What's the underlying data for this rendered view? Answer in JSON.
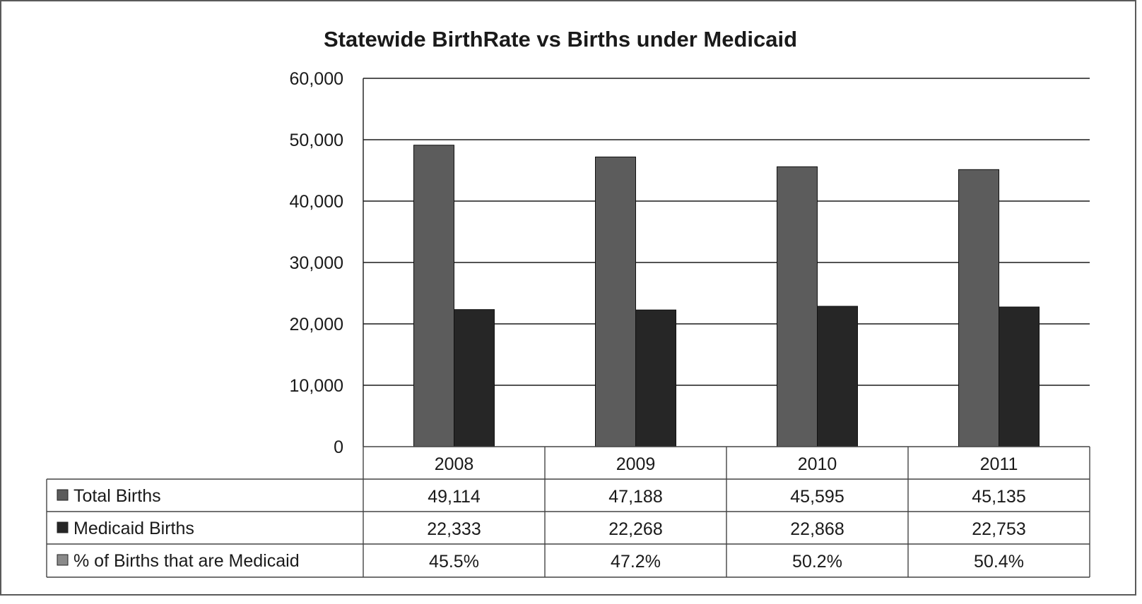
{
  "chart_data": {
    "type": "bar",
    "title": "Statewide BirthRate vs Births under Medicaid",
    "categories": [
      "2008",
      "2009",
      "2010",
      "2011"
    ],
    "ylim": [
      0,
      60000
    ],
    "yticks": [
      "0",
      "10,000",
      "20,000",
      "30,000",
      "40,000",
      "50,000",
      "60,000"
    ],
    "grid": true,
    "legend": "data-table",
    "series": [
      {
        "name": "Total Births",
        "values": [
          49114,
          47188,
          45595,
          45135
        ],
        "color": "#5c5c5c",
        "plotted": true
      },
      {
        "name": "Medicaid Births",
        "values": [
          22333,
          22268,
          22868,
          22753
        ],
        "color": "#262626",
        "plotted": true
      },
      {
        "name": "% of Births that are Medicaid",
        "values": [
          45.5,
          47.2,
          50.2,
          50.4
        ],
        "color": "#8a8a8a",
        "plotted": false
      }
    ],
    "table": {
      "rows": [
        {
          "label": "Total Births",
          "cells": [
            "49,114",
            "47,188",
            "45,595",
            "45,135"
          ]
        },
        {
          "label": "Medicaid Births",
          "cells": [
            "22,333",
            "22,268",
            "22,868",
            "22,753"
          ]
        },
        {
          "label": "% of Births that are Medicaid",
          "cells": [
            "45.5%",
            "47.2%",
            "50.2%",
            "50.4%"
          ]
        }
      ]
    }
  }
}
